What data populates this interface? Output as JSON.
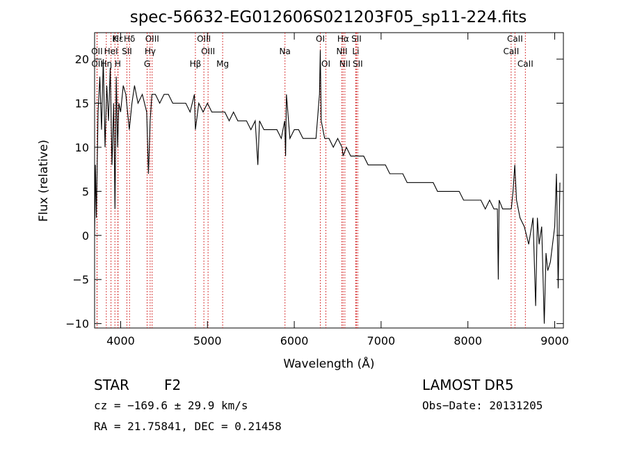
{
  "chart_data": {
    "type": "line",
    "title": "spec-56632-EG012606S021203F05_sp11-224.fits",
    "xlabel": "Wavelength (Å)",
    "ylabel": "Flux (relative)",
    "xlim": [
      3700,
      9100
    ],
    "ylim": [
      -10.5,
      23
    ],
    "xticks": [
      4000,
      5000,
      6000,
      7000,
      8000,
      9000
    ],
    "xtick_labels": [
      "4000",
      "5000",
      "6000",
      "7000",
      "8000",
      "9000"
    ],
    "yticks": [
      -10,
      -5,
      0,
      5,
      10,
      15,
      20
    ],
    "ytick_labels": [
      "−10",
      "−5",
      "0",
      "5",
      "10",
      "15",
      "20"
    ],
    "grid": false,
    "line_color": "#000000",
    "marker_color": "#cc0000",
    "series": [
      {
        "x": [
          3700,
          3710,
          3720,
          3740,
          3760,
          3780,
          3800,
          3820,
          3840,
          3860,
          3880,
          3900,
          3920,
          3935,
          3950,
          3965,
          3980,
          4000,
          4030,
          4060,
          4100,
          4130,
          4160,
          4200,
          4250,
          4300,
          4320,
          4340,
          4360,
          4400,
          4450,
          4500,
          4550,
          4600,
          4650,
          4700,
          4750,
          4800,
          4850,
          4861,
          4900,
          4950,
          5000,
          5050,
          5100,
          5150,
          5200,
          5250,
          5300,
          5350,
          5400,
          5450,
          5500,
          5550,
          5580,
          5600,
          5650,
          5700,
          5750,
          5800,
          5850,
          5890,
          5900,
          5910,
          5950,
          6000,
          6050,
          6100,
          6150,
          6200,
          6250,
          6290,
          6300,
          6310,
          6350,
          6400,
          6450,
          6500,
          6550,
          6563,
          6600,
          6650,
          6700,
          6750,
          6800,
          6850,
          6900,
          6950,
          7000,
          7050,
          7100,
          7150,
          7200,
          7250,
          7300,
          7350,
          7400,
          7450,
          7500,
          7550,
          7600,
          7650,
          7700,
          7750,
          7800,
          7850,
          7900,
          7950,
          8000,
          8050,
          8100,
          8150,
          8200,
          8250,
          8300,
          8340,
          8350,
          8360,
          8400,
          8450,
          8500,
          8520,
          8540,
          8560,
          8600,
          8650,
          8700,
          8750,
          8780,
          8800,
          8820,
          8850,
          8880,
          8900,
          8920,
          8950,
          9000,
          9020,
          9040,
          9060
        ],
        "y": [
          0,
          8,
          2,
          14,
          18,
          12,
          20,
          10,
          17,
          13,
          19,
          8,
          15,
          3,
          18,
          10,
          15,
          14,
          17,
          16,
          12,
          15,
          17,
          15,
          16,
          14,
          7,
          13,
          16,
          16,
          15,
          16,
          16,
          15,
          15,
          15,
          15,
          14,
          16,
          12,
          15,
          14,
          15,
          14,
          14,
          14,
          14,
          13,
          14,
          13,
          13,
          13,
          12,
          13,
          8,
          13,
          12,
          12,
          12,
          12,
          11,
          13,
          9,
          16,
          11,
          12,
          12,
          11,
          11,
          11,
          11,
          16,
          21,
          13,
          11,
          11,
          10,
          11,
          10,
          9,
          10,
          9,
          9,
          9,
          9,
          8,
          8,
          8,
          8,
          8,
          7,
          7,
          7,
          7,
          6,
          6,
          6,
          6,
          6,
          6,
          6,
          5,
          5,
          5,
          5,
          5,
          5,
          4,
          4,
          4,
          4,
          4,
          3,
          4,
          3,
          3,
          -5,
          4,
          3,
          3,
          3,
          5,
          8,
          4,
          2,
          1,
          -1,
          2,
          -8,
          2,
          -1,
          1,
          -10,
          -2,
          -4,
          -3,
          1,
          7,
          -6,
          6
        ]
      }
    ],
    "lines": [
      {
        "name": "Hδ",
        "x": 4102,
        "label_y": 1
      },
      {
        "name": "OIII",
        "x": 4363,
        "label_y": 1
      },
      {
        "name": "Hγ",
        "x": 4340,
        "label_y": 2
      },
      {
        "name": "OIII",
        "x": 4959,
        "label_y": 1
      },
      {
        "name": "OIII",
        "x": 5007,
        "label_y": 2
      },
      {
        "name": "G",
        "x": 4305,
        "label_y": 3
      },
      {
        "name": "Hβ",
        "x": 4861,
        "label_y": 3
      },
      {
        "name": "Mg",
        "x": 5175,
        "label_y": 3
      },
      {
        "name": "Na",
        "x": 5893,
        "label_y": 2
      },
      {
        "name": "OI",
        "x": 6300,
        "label_y": 1
      },
      {
        "name": "OI",
        "x": 6364,
        "label_y": 3
      },
      {
        "name": "Hα",
        "x": 6563,
        "label_y": 1
      },
      {
        "name": "NII",
        "x": 6548,
        "label_y": 2
      },
      {
        "name": "NII",
        "x": 6583,
        "label_y": 3
      },
      {
        "name": "SII",
        "x": 6716,
        "label_y": 1
      },
      {
        "name": "Li",
        "x": 6708,
        "label_y": 2
      },
      {
        "name": "SII",
        "x": 6731,
        "label_y": 3
      },
      {
        "name": "CaII",
        "x": 8542,
        "label_y": 1
      },
      {
        "name": "CaII",
        "x": 8498,
        "label_y": 2
      },
      {
        "name": "CaII",
        "x": 8662,
        "label_y": 3
      },
      {
        "name": "Hε",
        "x": 3970,
        "label_y": 1
      },
      {
        "name": "K",
        "x": 3934,
        "label_y": 1
      },
      {
        "name": "OII",
        "x": 3727,
        "label_y": 2
      },
      {
        "name": "HeI",
        "x": 3889,
        "label_y": 2
      },
      {
        "name": "SII",
        "x": 4072,
        "label_y": 2
      },
      {
        "name": "OII",
        "x": 3729,
        "label_y": 3
      },
      {
        "name": "Hη",
        "x": 3835,
        "label_y": 3
      },
      {
        "name": "H",
        "x": 3968,
        "label_y": 3
      }
    ]
  },
  "info": {
    "obj_class": "STAR",
    "subclass": "F2",
    "survey": "LAMOST  DR5",
    "cz": "cz = −169.6 ± 29.9 km/s",
    "obs_date": "Obs−Date: 20131205",
    "coords": "RA =  21.75841, DEC =   0.21458"
  }
}
